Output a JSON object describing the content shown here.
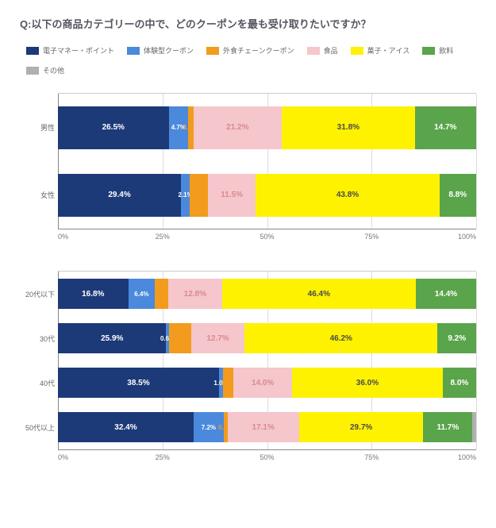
{
  "title": "Q:以下の商品カテゴリーの中で、どのクーポンを最も受け取りたいですか？",
  "legend": [
    {
      "label": "電子マネー・ポイント",
      "color": "#1c3a78"
    },
    {
      "label": "体験型クーポン",
      "color": "#4b89dc"
    },
    {
      "label": "外食チェーンクーポン",
      "color": "#f29b1d"
    },
    {
      "label": "食品",
      "color": "#f5c6cb"
    },
    {
      "label": "菓子・アイス",
      "color": "#fef200"
    },
    {
      "label": "飲料",
      "color": "#5aa44b"
    },
    {
      "label": "その他",
      "color": "#b0b0b0"
    }
  ],
  "text_colors": {
    "dark_bg": "#ffffff",
    "light_bg": "#4a4a4a",
    "orange": "#f29b1d",
    "pink": "#d98a93"
  },
  "axis_labels": [
    "0%",
    "25%",
    "50%",
    "75%",
    "100%"
  ],
  "chart1": {
    "row_height": "tall",
    "rows": [
      {
        "label": "男性",
        "segments": [
          {
            "value": 26.5,
            "text": "26.5%",
            "color_idx": 0,
            "txt": "dark_bg"
          },
          {
            "value": 4.7,
            "text": "4.7%",
            "color_idx": 1,
            "txt": "dark_bg",
            "small": true
          },
          {
            "value": 1.2,
            "text": "1.2%",
            "color_idx": 2,
            "txt": "orange",
            "small": true
          },
          {
            "value": 21.2,
            "text": "21.2%",
            "color_idx": 3,
            "txt": "pink"
          },
          {
            "value": 31.8,
            "text": "31.8%",
            "color_idx": 4,
            "txt": "light_bg"
          },
          {
            "value": 14.7,
            "text": "14.7%",
            "color_idx": 5,
            "txt": "dark_bg"
          }
        ]
      },
      {
        "label": "女性",
        "segments": [
          {
            "value": 29.4,
            "text": "29.4%",
            "color_idx": 0,
            "txt": "dark_bg"
          },
          {
            "value": 2.1,
            "text": "2.1%",
            "color_idx": 1,
            "txt": "dark_bg",
            "small": true
          },
          {
            "value": 4.3,
            "text": "4.3%",
            "color_idx": 2,
            "txt": "orange",
            "small": true
          },
          {
            "value": 11.5,
            "text": "11.5%",
            "color_idx": 3,
            "txt": "pink"
          },
          {
            "value": 43.8,
            "text": "43.8%",
            "color_idx": 4,
            "txt": "light_bg"
          },
          {
            "value": 8.8,
            "text": "8.8%",
            "color_idx": 5,
            "txt": "dark_bg"
          }
        ]
      }
    ]
  },
  "chart2": {
    "row_height": "normal",
    "rows": [
      {
        "label": "20代以下",
        "segments": [
          {
            "value": 16.8,
            "text": "16.8%",
            "color_idx": 0,
            "txt": "dark_bg"
          },
          {
            "value": 6.4,
            "text": "6.4%",
            "color_idx": 1,
            "txt": "dark_bg",
            "small": true
          },
          {
            "value": 3.2,
            "text": "3.2%",
            "color_idx": 2,
            "txt": "orange",
            "small": true
          },
          {
            "value": 12.8,
            "text": "12.8%",
            "color_idx": 3,
            "txt": "pink"
          },
          {
            "value": 46.4,
            "text": "46.4%",
            "color_idx": 4,
            "txt": "light_bg"
          },
          {
            "value": 14.4,
            "text": "14.4%",
            "color_idx": 5,
            "txt": "dark_bg"
          }
        ]
      },
      {
        "label": "30代",
        "segments": [
          {
            "value": 25.9,
            "text": "25.9%",
            "color_idx": 0,
            "txt": "dark_bg"
          },
          {
            "value": 0.6,
            "text": "0.6%",
            "color_idx": 1,
            "txt": "dark_bg",
            "small": true
          },
          {
            "value": 5.4,
            "text": "5.4%",
            "color_idx": 2,
            "txt": "orange",
            "small": true
          },
          {
            "value": 12.7,
            "text": "12.7%",
            "color_idx": 3,
            "txt": "pink"
          },
          {
            "value": 46.2,
            "text": "46.2%",
            "color_idx": 4,
            "txt": "light_bg"
          },
          {
            "value": 9.2,
            "text": "9.2%",
            "color_idx": 5,
            "txt": "dark_bg"
          }
        ]
      },
      {
        "label": "40代",
        "segments": [
          {
            "value": 38.5,
            "text": "38.5%",
            "color_idx": 0,
            "txt": "dark_bg"
          },
          {
            "value": 1.0,
            "text": "1.0%",
            "color_idx": 1,
            "txt": "dark_bg",
            "small": true
          },
          {
            "value": 2.5,
            "text": "2.5%",
            "color_idx": 2,
            "txt": "orange",
            "small": true
          },
          {
            "value": 14.0,
            "text": "14.0%",
            "color_idx": 3,
            "txt": "pink"
          },
          {
            "value": 36.0,
            "text": "36.0%",
            "color_idx": 4,
            "txt": "light_bg"
          },
          {
            "value": 8.0,
            "text": "8.0%",
            "color_idx": 5,
            "txt": "dark_bg"
          }
        ]
      },
      {
        "label": "50代以上",
        "segments": [
          {
            "value": 32.4,
            "text": "32.4%",
            "color_idx": 0,
            "txt": "dark_bg"
          },
          {
            "value": 7.2,
            "text": "7.2%",
            "color_idx": 1,
            "txt": "dark_bg",
            "small": true
          },
          {
            "value": 0.9,
            "text": "0.9%",
            "color_idx": 2,
            "txt": "orange",
            "small": true
          },
          {
            "value": 17.1,
            "text": "17.1%",
            "color_idx": 3,
            "txt": "pink"
          },
          {
            "value": 29.7,
            "text": "29.7%",
            "color_idx": 4,
            "txt": "light_bg"
          },
          {
            "value": 11.7,
            "text": "11.7%",
            "color_idx": 5,
            "txt": "dark_bg"
          },
          {
            "value": 0.9,
            "text": "",
            "color_idx": 6,
            "txt": "light_bg"
          }
        ]
      }
    ]
  }
}
